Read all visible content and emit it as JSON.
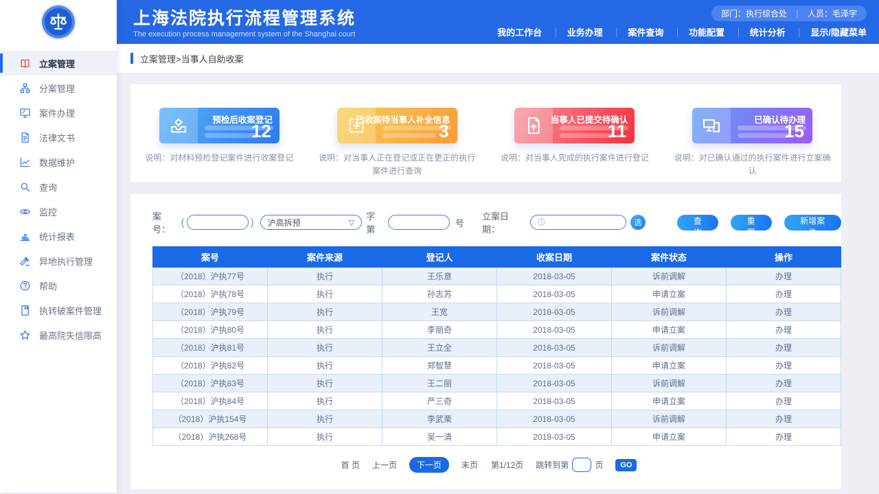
{
  "colors": {
    "primary": "#2468e5",
    "table_header": "#1a6ae8",
    "active_icon_red": "#e8463c"
  },
  "header": {
    "title": "上海法院执行流程管理系统",
    "subtitle": "The execution process management system of the Shanghai court",
    "badge": {
      "department": "部门：执行综合处",
      "divider": "｜",
      "person": "人员：毛泽宇"
    },
    "nav_separator": "｜",
    "nav": [
      {
        "label": "我的工作台"
      },
      {
        "label": "业务办理"
      },
      {
        "label": "案件查询"
      },
      {
        "label": "功能配置"
      },
      {
        "label": "统计分析"
      },
      {
        "label": "显示/隐藏菜单"
      }
    ]
  },
  "sidebar": {
    "items": [
      {
        "label": "立案管理",
        "icon": "book-open-icon",
        "active": true
      },
      {
        "label": "分案管理",
        "icon": "sitemap-icon",
        "active": false
      },
      {
        "label": "案件办理",
        "icon": "monitor-case-icon",
        "active": false
      },
      {
        "label": "法律文书",
        "icon": "legal-document-icon",
        "active": false
      },
      {
        "label": "数据维护",
        "icon": "chart-line-icon",
        "active": false
      },
      {
        "label": "查询",
        "icon": "search-icon",
        "active": false
      },
      {
        "label": "监控",
        "icon": "eye-monitor-icon",
        "active": false
      },
      {
        "label": "统计报表",
        "icon": "bar-chart-icon",
        "active": false
      },
      {
        "label": "异地执行管理",
        "icon": "gavel-icon",
        "active": false
      },
      {
        "label": "帮助",
        "icon": "question-icon",
        "active": false
      },
      {
        "label": "执转破案件管理",
        "icon": "notebook-icon",
        "active": false
      },
      {
        "label": "最高院失信限高",
        "icon": "star-icon",
        "active": false
      }
    ]
  },
  "breadcrumb": {
    "text": "立案管理>当事人自助收案"
  },
  "stats": {
    "cards": [
      {
        "title": "预检后收案登记",
        "value": "12",
        "icon": "inbox-scan-icon",
        "gradient": [
          "#56aef7",
          "#2e7bf0"
        ],
        "desc": "说明：对材料预检登记案件进行收案登记"
      },
      {
        "title": "已收案待当事人补全信息",
        "value": "3",
        "icon": "plus-dashed-icon",
        "gradient": [
          "#f8d058",
          "#f99b37"
        ],
        "desc": "说明：对当事人正在登记或正在更正的执行案件进行查询"
      },
      {
        "title": "当事人已提交待确认",
        "value": "11",
        "icon": "file-upload-icon",
        "gradient": [
          "#f9919b",
          "#f2303e"
        ],
        "desc": "说明：对当事人完成的执行案件进行登记"
      },
      {
        "title": "已确认待办理",
        "value": "15",
        "icon": "computer-icon",
        "gradient": [
          "#5f9df7",
          "#9c5bf5"
        ],
        "desc": "说明：对已确认通过的执行案件进行立案确认"
      }
    ]
  },
  "filter": {
    "case_no_label": "案号：",
    "paren_open": "(",
    "paren_close": ")",
    "case_prefix_input": "",
    "court_code": "沪高拆预",
    "dropdown_arrow": "▽",
    "zidi_label": "字第",
    "case_number_input": "",
    "hao_label": "号",
    "date_label": "立案日期：",
    "date_input": "",
    "pick_button": "选",
    "search_button": "查询",
    "reset_button": "重置",
    "add_button": "新增案件"
  },
  "table": {
    "columns": [
      "案号",
      "案件来源",
      "登记人",
      "收案日期",
      "案件状态",
      "操作"
    ],
    "rows": [
      {
        "case_no": "（2018）沪执77号",
        "source": "执行",
        "registrant": "王乐意",
        "receive_date": "2018-03-05",
        "status": "诉前调解",
        "action": "办理"
      },
      {
        "case_no": "（2018）沪执78号",
        "source": "执行",
        "registrant": "孙志苏",
        "receive_date": "2018-03-05",
        "status": "申请立案",
        "action": "办理"
      },
      {
        "case_no": "（2018）沪执79号",
        "source": "执行",
        "registrant": "王宽",
        "receive_date": "2018-03-05",
        "status": "诉前调解",
        "action": "办理"
      },
      {
        "case_no": "（2018）沪执80号",
        "source": "执行",
        "registrant": "李丽奇",
        "receive_date": "2018-03-05",
        "status": "申请立案",
        "action": "办理"
      },
      {
        "case_no": "（2018）沪执81号",
        "source": "执行",
        "registrant": "王立全",
        "receive_date": "2018-03-05",
        "status": "诉前调解",
        "action": "办理"
      },
      {
        "case_no": "（2018）沪执82号",
        "source": "执行",
        "registrant": "郑智慧",
        "receive_date": "2018-03-05",
        "status": "申请立案",
        "action": "办理"
      },
      {
        "case_no": "（2018）沪执83号",
        "source": "执行",
        "registrant": "王二丽",
        "receive_date": "2018-03-05",
        "status": "诉前调解",
        "action": "办理"
      },
      {
        "case_no": "（2018）沪执84号",
        "source": "执行",
        "registrant": "严三奇",
        "receive_date": "2018-03-05",
        "status": "申请立案",
        "action": "办理"
      },
      {
        "case_no": "（2018）沪执154号",
        "source": "执行",
        "registrant": "李武栗",
        "receive_date": "2018-03-05",
        "status": "诉前调解",
        "action": "办理"
      },
      {
        "case_no": "（2018）沪执268号",
        "source": "执行",
        "registrant": "吴一清",
        "receive_date": "2018-03-05",
        "status": "申请立案",
        "action": "办理"
      }
    ]
  },
  "pagination": {
    "first": "首 页",
    "prev": "上一页",
    "next": "下一页",
    "last": "末页",
    "page_info": "第1/12页",
    "jump_prefix": "跳转到第",
    "jump_input": "",
    "jump_suffix": "页",
    "go": "GO"
  }
}
